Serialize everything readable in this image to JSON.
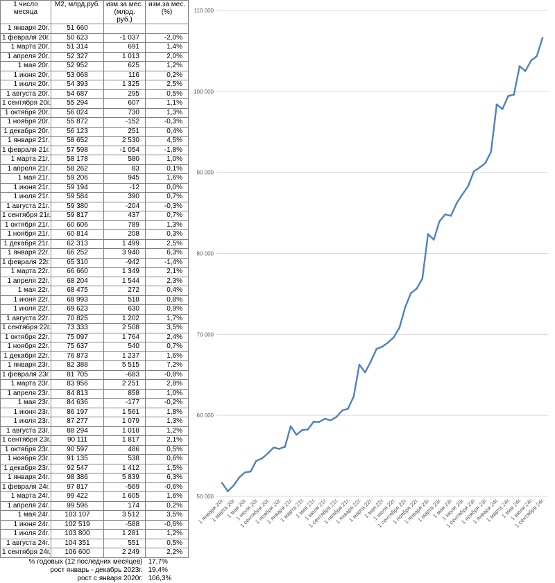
{
  "table": {
    "headers": [
      "1 число месяца",
      "М2, млрд.руб.",
      "изм.за мес. (млрд. руб.)",
      "изм.за мес. (%)"
    ],
    "rows": [
      [
        "1 января 20г.",
        "51 660",
        "",
        ""
      ],
      [
        "1 февраля 20г.",
        "50 623",
        "-1 037",
        "-2,0%"
      ],
      [
        "1 марта 20г.",
        "51 314",
        "691",
        "1,4%"
      ],
      [
        "1 апреля 20г.",
        "52 327",
        "1 013",
        "2,0%"
      ],
      [
        "1 мая 20г.",
        "52 952",
        "625",
        "1,2%"
      ],
      [
        "1 июня 20г.",
        "53 068",
        "116",
        "0,2%"
      ],
      [
        "1 июля 20г.",
        "54 393",
        "1 325",
        "2,5%"
      ],
      [
        "1 августа 20г.",
        "54 687",
        "295",
        "0,5%"
      ],
      [
        "1 сентября 20г.",
        "55 294",
        "607",
        "1,1%"
      ],
      [
        "1 октября 20г.",
        "56 024",
        "730",
        "1,3%"
      ],
      [
        "1 ноября 20г.",
        "55 872",
        "-152",
        "-0,3%"
      ],
      [
        "1 декабря 20г.",
        "56 123",
        "251",
        "0,4%"
      ],
      [
        "1 января 21г.",
        "58 652",
        "2 530",
        "4,5%"
      ],
      [
        "1 февраля 21г.",
        "57 598",
        "-1 054",
        "-1,8%"
      ],
      [
        "1 марта 21г.",
        "58 178",
        "580",
        "1,0%"
      ],
      [
        "1 апреля 21г.",
        "58 262",
        "83",
        "0,1%"
      ],
      [
        "1 мая 21г.",
        "59 206",
        "945",
        "1,6%"
      ],
      [
        "1 июня 21г.",
        "59 194",
        "-12",
        "0,0%"
      ],
      [
        "1 июля 21г.",
        "59 584",
        "390",
        "0,7%"
      ],
      [
        "1 августа 21г.",
        "59 380",
        "-204",
        "-0,3%"
      ],
      [
        "1 сентября 21г.",
        "59 817",
        "437",
        "0,7%"
      ],
      [
        "1 октября 21г.",
        "60 606",
        "789",
        "1,3%"
      ],
      [
        "1 ноября 21г.",
        "60 814",
        "208",
        "0,3%"
      ],
      [
        "1 декабря 21г.",
        "62 313",
        "1 499",
        "2,5%"
      ],
      [
        "1 января 22г.",
        "66 252",
        "3 940",
        "6,3%"
      ],
      [
        "1 февраля 22г.",
        "65 310",
        "-942",
        "-1,4%"
      ],
      [
        "1 марта 22г.",
        "66 660",
        "1 349",
        "2,1%"
      ],
      [
        "1 апреля 22г.",
        "68 204",
        "1 544",
        "2,3%"
      ],
      [
        "1 мая 22г.",
        "68 475",
        "272",
        "0,4%"
      ],
      [
        "1 июня 22г.",
        "68 993",
        "518",
        "0,8%"
      ],
      [
        "1 июля 22г.",
        "69 623",
        "630",
        "0,9%"
      ],
      [
        "1 августа 22г.",
        "70 825",
        "1 202",
        "1,7%"
      ],
      [
        "1 сентября 22г.",
        "73 333",
        "2 508",
        "3,5%"
      ],
      [
        "1 октября 22г.",
        "75 097",
        "1 764",
        "2,4%"
      ],
      [
        "1 ноября 22г.",
        "75 637",
        "540",
        "0,7%"
      ],
      [
        "1 декабря 22г.",
        "76 873",
        "1 237",
        "1,6%"
      ],
      [
        "1 января 23г.",
        "82 388",
        "5 515",
        "7,2%"
      ],
      [
        "1 февраля 23г.",
        "81 705",
        "-683",
        "-0,8%"
      ],
      [
        "1 марта 23г.",
        "83 956",
        "2 251",
        "2,8%"
      ],
      [
        "1 апреля 23г.",
        "84 813",
        "858",
        "1,0%"
      ],
      [
        "1 мая 23г.",
        "84 636",
        "-177",
        "-0,2%"
      ],
      [
        "1 июня 23г.",
        "86 197",
        "1 561",
        "1,8%"
      ],
      [
        "1 июля 23г.",
        "87 277",
        "1 079",
        "1,3%"
      ],
      [
        "1 августа 23г.",
        "88 294",
        "1 018",
        "1,2%"
      ],
      [
        "1 сентября 23г.",
        "90 111",
        "1 817",
        "2,1%"
      ],
      [
        "1 октября 23г.",
        "90 597",
        "486",
        "0,5%"
      ],
      [
        "1 ноября 23г.",
        "91 135",
        "538",
        "0,6%"
      ],
      [
        "1 декабря 23г.",
        "92 547",
        "1 412",
        "1,5%"
      ],
      [
        "1 января 24г.",
        "98 386",
        "5 839",
        "6,3%"
      ],
      [
        "1 февраля 24г.",
        "97 817",
        "-569",
        "-0,6%"
      ],
      [
        "1 марта 24г.",
        "99 422",
        "1 605",
        "1,6%"
      ],
      [
        "1 апреля 24г.",
        "99 596",
        "174",
        "0,2%"
      ],
      [
        "1 мая 24г.",
        "103 107",
        "3 512",
        "3,5%"
      ],
      [
        "1 июня 24г.",
        "102 519",
        "-588",
        "-0,6%"
      ],
      [
        "1 июля 24г.",
        "103 800",
        "1 281",
        "1,2%"
      ],
      [
        "1 августа 24г.",
        "104 351",
        "551",
        "0,5%"
      ],
      [
        "1 сентября 24г.",
        "106 600",
        "2 249",
        "2,2%"
      ]
    ],
    "summary": [
      {
        "label": "% годовых (12 последних месяцев)",
        "value": "17,7%"
      },
      {
        "label": "рост январь - декабрь 2023г.",
        "value": "19,4%"
      },
      {
        "label": "рост с января 2020г.",
        "value": "106,3%"
      }
    ]
  },
  "chart_data": {
    "type": "line",
    "title": "",
    "xlabel": "",
    "ylabel": "",
    "ylim": [
      50000,
      110000
    ],
    "yticks": [
      50000,
      60000,
      70000,
      80000,
      90000,
      100000,
      110000
    ],
    "ytick_labels": [
      "50 000",
      "60 000",
      "70 000",
      "80 000",
      "90 000",
      "100 000",
      "110 000"
    ],
    "grid": true,
    "legend": "none",
    "x": [
      "1 января 20г.",
      "1 февраля 20г.",
      "1 марта 20г.",
      "1 апреля 20г.",
      "1 мая 20г.",
      "1 июня 20г.",
      "1 июля 20г.",
      "1 августа 20г.",
      "1 сентября 20г.",
      "1 октября 20г.",
      "1 ноября 20г.",
      "1 декабря 20г.",
      "1 января 21г.",
      "1 февраля 21г.",
      "1 марта 21г.",
      "1 апреля 21г.",
      "1 мая 21г.",
      "1 июня 21г.",
      "1 июля 21г.",
      "1 августа 21г.",
      "1 сентября 21г.",
      "1 октября 21г.",
      "1 ноября 21г.",
      "1 декабря 21г.",
      "1 января 22г.",
      "1 февраля 22г.",
      "1 марта 22г.",
      "1 апреля 22г.",
      "1 мая 22г.",
      "1 июня 22г.",
      "1 июля 22г.",
      "1 августа 22г.",
      "1 сентября 22г.",
      "1 октября 22г.",
      "1 ноября 22г.",
      "1 декабря 22г.",
      "1 января 23г.",
      "1 февраля 23г.",
      "1 марта 23г.",
      "1 апреля 23г.",
      "1 мая 23г.",
      "1 июня 23г.",
      "1 июля 23г.",
      "1 августа 23г.",
      "1 сентября 23г.",
      "1 октября 23г.",
      "1 ноября 23г.",
      "1 декабря 23г.",
      "1 января 24г.",
      "1 февраля 24г.",
      "1 марта 24г.",
      "1 апреля 24г.",
      "1 мая 24г.",
      "1 июня 24г.",
      "1 июля 24г.",
      "1 августа 24г.",
      "1 сентября 24г."
    ],
    "xtick_labels": [
      "1 января 20г.",
      "1 марта 20г.",
      "1 мая 20г.",
      "1 июля 20г.",
      "1 сентября 20г.",
      "1 ноября 20г.",
      "1 января 21г.",
      "1 марта 21г.",
      "1 мая 21г.",
      "1 июля 21г.",
      "1 сентября 21г.",
      "1 ноября 21г.",
      "1 января 22г.",
      "1 марта 22г.",
      "1 мая 22г.",
      "1 июля 22г.",
      "1 сентября 22г.",
      "1 ноября 22г.",
      "1 января 23г.",
      "1 марта 23г.",
      "1 мая 23г.",
      "1 июля 23г.",
      "1 сентября 23г.",
      "1 ноября 23г.",
      "1 января 24г.",
      "1 марта 24г.",
      "1 мая 24г.",
      "1 июля 24г.",
      "1 сентября 24г."
    ],
    "series": [
      {
        "name": "",
        "color": "#4f81bd",
        "values": [
          51660,
          50623,
          51314,
          52327,
          52952,
          53068,
          54393,
          54687,
          55294,
          56024,
          55872,
          56123,
          58652,
          57598,
          58178,
          58262,
          59206,
          59194,
          59584,
          59380,
          59817,
          60606,
          60814,
          62313,
          66252,
          65310,
          66660,
          68204,
          68475,
          68993,
          69623,
          70825,
          73333,
          75097,
          75637,
          76873,
          82388,
          81705,
          83956,
          84813,
          84636,
          86197,
          87277,
          88294,
          90111,
          90597,
          91135,
          92547,
          98386,
          97817,
          99422,
          99596,
          103107,
          102519,
          103800,
          104351,
          106600
        ]
      }
    ]
  }
}
